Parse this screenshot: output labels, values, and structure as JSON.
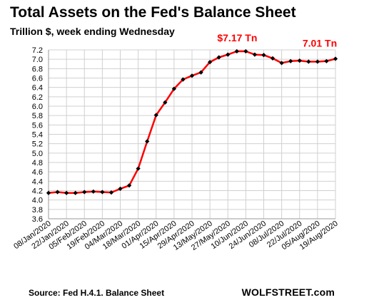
{
  "chart_data": {
    "type": "line",
    "title": "Total Assets on the Fed's Balance Sheet",
    "subtitle": "Trillion $, week ending Wednesday",
    "source": "Source: Fed H.4.1. Balance Sheet",
    "brand": "WOLFSTREET.com",
    "xlabel": "",
    "ylabel": "",
    "ylim": [
      3.6,
      7.2
    ],
    "yticks": [
      "3.6",
      "3.8",
      "4.0",
      "4.2",
      "4.4",
      "4.6",
      "4.8",
      "5.0",
      "5.2",
      "5.4",
      "5.6",
      "5.8",
      "6.0",
      "6.2",
      "6.4",
      "6.6",
      "6.8",
      "7.0",
      "7.2"
    ],
    "grid": true,
    "line_color": "#ff0000",
    "marker_color": "#000000",
    "x": [
      "08/Jan/2020",
      "15/Jan/2020",
      "22/Jan/2020",
      "29/Jan/2020",
      "05/Feb/2020",
      "12/Feb/2020",
      "19/Feb/2020",
      "26/Feb/2020",
      "04/Mar/2020",
      "11/Mar/2020",
      "18/Mar/2020",
      "25/Mar/2020",
      "01/Apr/2020",
      "08/Apr/2020",
      "15/Apr/2020",
      "22/Apr/2020",
      "29/Apr/2020",
      "06/May/2020",
      "13/May/2020",
      "20/May/2020",
      "27/May/2020",
      "03/Jun/2020",
      "10/Jun/2020",
      "17/Jun/2020",
      "24/Jun/2020",
      "01/Jul/2020",
      "08/Jul/2020",
      "15/Jul/2020",
      "22/Jul/2020",
      "29/Jul/2020",
      "05/Aug/2020",
      "12/Aug/2020",
      "19/Aug/2020"
    ],
    "xtick_labels": [
      "08/Jan/2020",
      "22/Jan/2020",
      "05/Feb/2020",
      "19/Feb/2020",
      "04/Mar/2020",
      "18/Mar/2020",
      "01/Apr/2020",
      "15/Apr/2020",
      "29/Apr/2020",
      "13/May/2020",
      "27/May/2020",
      "10/Jun/2020",
      "24/Jun/2020",
      "08/Jul/2020",
      "22/Jul/2020",
      "05/Aug/2020",
      "19/Aug/2020"
    ],
    "values": [
      4.15,
      4.17,
      4.15,
      4.15,
      4.17,
      4.18,
      4.17,
      4.16,
      4.24,
      4.31,
      4.67,
      5.25,
      5.81,
      6.08,
      6.37,
      6.57,
      6.65,
      6.72,
      6.94,
      7.04,
      7.1,
      7.17,
      7.17,
      7.1,
      7.09,
      7.02,
      6.92,
      6.96,
      6.97,
      6.95,
      6.95,
      6.96,
      7.01
    ],
    "annotations": [
      {
        "text": "$7.17 Tn",
        "index": 22
      },
      {
        "text": "7.01 Tn",
        "index": 32
      }
    ]
  }
}
